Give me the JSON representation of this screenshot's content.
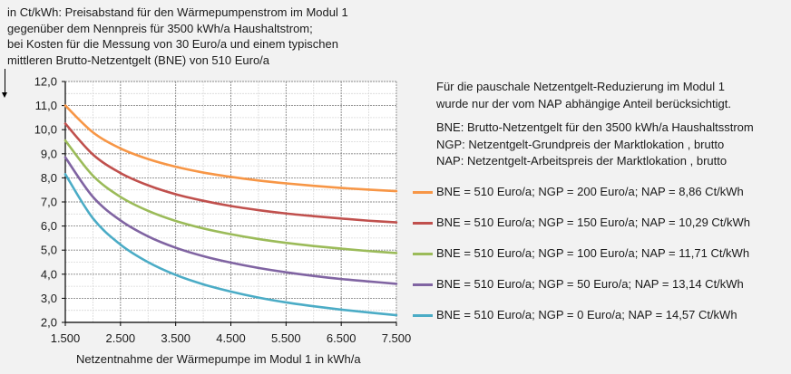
{
  "y_axis_note": [
    "in Ct/kWh:  Preisabstand  für den Wärmepumpenstrom  im Modul 1",
    "gegenüber dem Nennpreis  für 3500 kWh/a Haushaltstrom;",
    "bei Kosten für die Messung von 30 Euro/a und einem typischen",
    "mittleren  Brutto-Netzentgelt  (BNE) von 510 Euro/a"
  ],
  "notes": [
    "Für die pauschale Netzentgelt-Reduzierung  im Modul 1",
    "wurde nur der vom NAP abhängige Anteil berücksichtigt."
  ],
  "abbreviations": [
    "BNE: Brutto-Netzentgelt  für den 3500 kWh/a Haushaltsstrom",
    "NGP: Netzentgelt-Grundpreis  der Marktlokation , brutto",
    "NAP: Netzentgelt-Arbeitspreis  der Marktlokation , brutto"
  ],
  "chart_data": {
    "type": "line",
    "xlabel": "Netzentnahme  der Wärmepumpe  im Modul 1 in kWh/a",
    "ylabel": "in Ct/kWh",
    "xlim": [
      1500,
      7500
    ],
    "ylim": [
      2.0,
      12.0
    ],
    "x_ticks": [
      "1.500",
      "2.500",
      "3.500",
      "4.500",
      "5.500",
      "6.500",
      "7.500"
    ],
    "y_ticks": [
      "2,0",
      "3,0",
      "4,0",
      "5,0",
      "6,0",
      "7,0",
      "8,0",
      "9,0",
      "10,0",
      "11,0",
      "12,0"
    ],
    "grid": true,
    "legend_placement": "right",
    "x": [
      1500,
      2000,
      2500,
      3000,
      3500,
      4000,
      4500,
      5000,
      5500,
      6000,
      6500,
      7000,
      7500
    ],
    "series": [
      {
        "name": "BNE = 510 Euro/a; NGP = 200 Euro/a; NAP = 8,86 Ct/kWh",
        "color": "#f79646",
        "values": [
          11.0,
          9.89,
          9.22,
          8.78,
          8.46,
          8.22,
          8.04,
          7.89,
          7.77,
          7.67,
          7.58,
          7.51,
          7.45
        ]
      },
      {
        "name": "BNE = 510 Euro/a; NGP = 150 Euro/a; NAP = 10,29 Ct/kWh",
        "color": "#c0504d",
        "values": [
          10.25,
          8.97,
          8.2,
          7.69,
          7.32,
          7.05,
          6.83,
          6.66,
          6.52,
          6.41,
          6.31,
          6.22,
          6.15
        ]
      },
      {
        "name": "BNE = 510 Euro/a; NGP = 100 Euro/a; NAP = 11,71 Ct/kWh",
        "color": "#9bbb59",
        "values": [
          9.55,
          8.09,
          7.21,
          6.63,
          6.21,
          5.9,
          5.66,
          5.46,
          5.3,
          5.17,
          5.06,
          4.96,
          4.88
        ]
      },
      {
        "name": "BNE = 510 Euro/a; NGP = 50 Euro/a; NAP = 13,14 Ct/kWh",
        "color": "#8064a2",
        "values": [
          8.85,
          7.21,
          6.23,
          5.57,
          5.1,
          4.75,
          4.48,
          4.26,
          4.08,
          3.93,
          3.8,
          3.7,
          3.6
        ]
      },
      {
        "name": "BNE = 510 Euro/a; NGP = 0 Euro/a; NAP = 14,57 Ct/kWh",
        "color": "#4bacc6",
        "values": [
          8.15,
          6.32,
          5.23,
          4.5,
          3.97,
          3.58,
          3.28,
          3.03,
          2.83,
          2.67,
          2.53,
          2.41,
          2.3
        ]
      }
    ]
  }
}
